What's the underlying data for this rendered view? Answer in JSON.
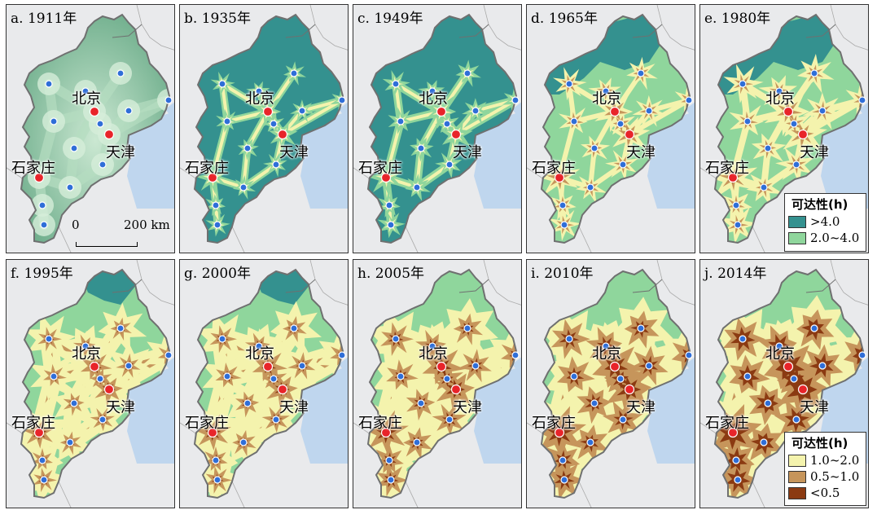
{
  "colors": {
    "sea": "#bfd6ee",
    "outside": "#e9eaec",
    "border": "#6f7070",
    "cat_gt4": "#34918f",
    "cat_2to4": "#8fd69c",
    "cat_1to2": "#f4f3ad",
    "cat_05to1": "#c6955b",
    "cat_lt05": "#8b3a12",
    "station_city": "#e8242a",
    "station_other": "#2f6ed8",
    "gradient_dark": "#6fae8c",
    "gradient_light": "#cbe8d2"
  },
  "panels": [
    {
      "label": "a. 1911年",
      "year": 1911,
      "style": "continuous"
    },
    {
      "label": "b. 1935年",
      "year": 1935,
      "style": "categorical"
    },
    {
      "label": "c. 1949年",
      "year": 1949,
      "style": "categorical"
    },
    {
      "label": "d. 1965年",
      "year": 1965,
      "style": "categorical"
    },
    {
      "label": "e. 1980年",
      "year": 1980,
      "style": "categorical"
    },
    {
      "label": "f. 1995年",
      "year": 1995,
      "style": "categorical"
    },
    {
      "label": "g. 2000年",
      "year": 2000,
      "style": "categorical"
    },
    {
      "label": "h. 2005年",
      "year": 2005,
      "style": "categorical"
    },
    {
      "label": "i. 2010年",
      "year": 2010,
      "style": "categorical"
    },
    {
      "label": "j. 2014年",
      "year": 2014,
      "style": "categorical"
    }
  ],
  "cities": {
    "beijing": "北京",
    "tianjin": "天津",
    "shijiazhuang": "石家庄"
  },
  "scale_bar": {
    "start": "0",
    "end": "200 km"
  },
  "legend_top": {
    "title": "可达性(h)",
    "items": [
      {
        "label": ">4.0",
        "color": "#34918f"
      },
      {
        "label": "2.0~4.0",
        "color": "#8fd69c"
      }
    ]
  },
  "legend_bottom": {
    "title": "可达性(h)",
    "items": [
      {
        "label": "1.0~2.0",
        "color": "#f4f3ad"
      },
      {
        "label": "0.5~1.0",
        "color": "#c6955b"
      },
      {
        "label": "<0.5",
        "color": "#8b3a12"
      }
    ]
  }
}
